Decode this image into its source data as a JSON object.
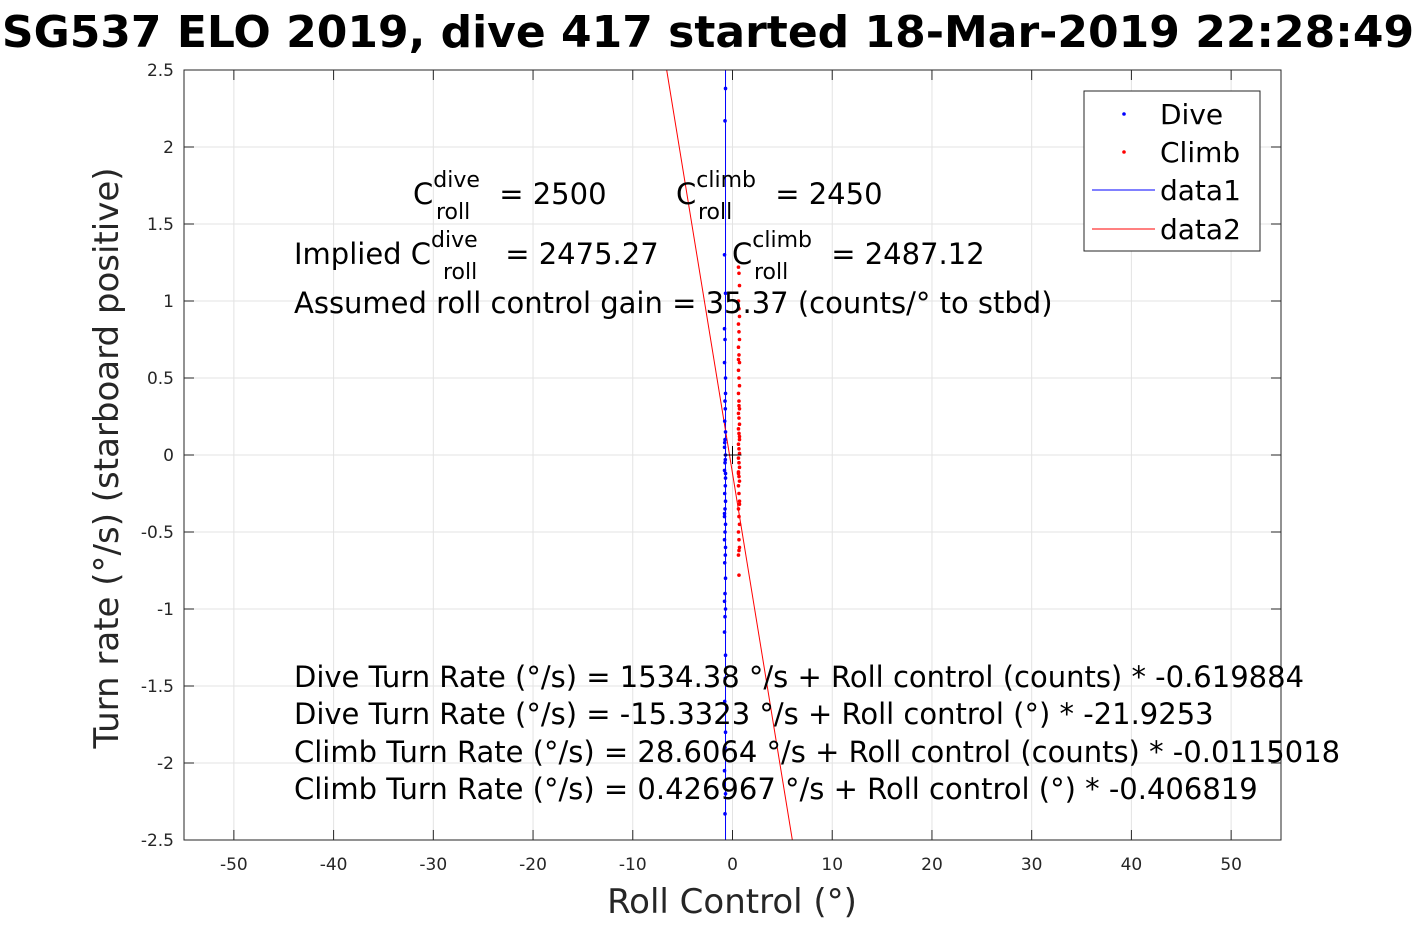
{
  "chart_data": {
    "type": "scatter",
    "title": "SG537 ELO 2019, dive 417 started 18-Mar-2019 22:28:49",
    "xlabel": "Roll Control (°)",
    "ylabel": "Turn rate (°/s) (starboard positive)",
    "xlim": [
      -55,
      55
    ],
    "ylim": [
      -2.5,
      2.5
    ],
    "xticks": [
      -50,
      -40,
      -30,
      -20,
      -10,
      0,
      10,
      20,
      30,
      40,
      50
    ],
    "yticks": [
      -2.5,
      -2,
      -1.5,
      -1,
      -0.5,
      0,
      0.5,
      1,
      1.5,
      2,
      2.5
    ],
    "xtick_labels": [
      "-50",
      "-40",
      "-30",
      "-20",
      "-10",
      "0",
      "10",
      "20",
      "30",
      "40",
      "50"
    ],
    "ytick_labels": [
      "-2.5",
      "-2",
      "-1.5",
      "-1",
      "-0.5",
      "0",
      "0.5",
      "1",
      "1.5",
      "2",
      "2.5"
    ],
    "grid": true,
    "legend_position": "top-right",
    "legend": [
      "Dive",
      "Climb",
      "data1",
      "data2"
    ],
    "colors": {
      "dive": "#0000ff",
      "climb": "#ff0000",
      "marker": "#000000"
    },
    "series": [
      {
        "name": "Dive",
        "kind": "points",
        "x": [
          -0.7,
          -0.75,
          -0.8,
          -0.7,
          -0.75,
          -0.8,
          -0.7,
          -0.72,
          -0.78,
          -0.7,
          -0.75,
          -0.8,
          -0.7,
          -0.75,
          -0.8,
          -0.7,
          -0.72,
          -0.78,
          -0.7,
          -0.75,
          -0.8,
          -0.7,
          -0.75,
          -0.8,
          -0.7,
          -0.72,
          -0.78,
          -0.7,
          -0.75,
          -0.8,
          -0.7,
          -0.75,
          -0.8,
          -0.7,
          -0.72,
          -0.78,
          -0.7,
          -0.75,
          -0.8,
          -0.7,
          -0.75,
          -0.8,
          -0.7,
          -0.72,
          -0.78,
          -0.7,
          -0.75,
          -0.8
        ],
        "y": [
          2.38,
          2.17,
          1.3,
          1.05,
          0.75,
          0.6,
          0.4,
          0.3,
          0.22,
          0.15,
          0.1,
          0.05,
          0.0,
          -0.05,
          -0.1,
          -0.15,
          -0.2,
          -0.25,
          -0.3,
          -0.35,
          -0.4,
          -0.45,
          -0.5,
          -0.55,
          -0.6,
          -0.65,
          -0.7,
          -0.8,
          -0.9,
          -0.95,
          -1.0,
          -1.05,
          -1.15,
          -1.3,
          -1.45,
          -1.6,
          -1.8,
          -1.9,
          -2.05,
          -2.2,
          -2.33,
          0.82,
          0.5,
          -0.03,
          0.08,
          -0.12,
          0.35,
          -0.38
        ]
      },
      {
        "name": "Climb",
        "kind": "points",
        "x": [
          0.6,
          0.65,
          0.7,
          0.6,
          0.65,
          0.7,
          0.6,
          0.65,
          0.7,
          0.6,
          0.65,
          0.7,
          0.6,
          0.65,
          0.7,
          0.6,
          0.65,
          0.7,
          0.6,
          0.65,
          0.7,
          0.6,
          0.65,
          0.7,
          0.6,
          0.65,
          0.7,
          0.6,
          0.65,
          0.7,
          0.6,
          0.65,
          0.7,
          0.6,
          0.65,
          0.7,
          0.6,
          0.65,
          0.7,
          0.6,
          0.65,
          0.7,
          0.6,
          0.65,
          0.7,
          0.6,
          0.65,
          0.7,
          0.6,
          0.65
        ],
        "y": [
          1.22,
          1.18,
          1.1,
          1.0,
          0.95,
          0.9,
          0.85,
          0.8,
          0.75,
          0.7,
          0.65,
          0.6,
          0.55,
          0.5,
          0.45,
          0.4,
          0.35,
          0.3,
          0.27,
          0.24,
          0.2,
          0.17,
          0.14,
          0.1,
          0.07,
          0.04,
          0.01,
          -0.02,
          -0.05,
          -0.08,
          -0.11,
          -0.14,
          -0.17,
          -0.2,
          -0.25,
          -0.3,
          -0.35,
          -0.4,
          -0.45,
          -0.5,
          -0.55,
          -0.6,
          -0.65,
          -0.78,
          0.12,
          -0.12,
          0.32,
          -0.32,
          0.62,
          -0.62
        ]
      },
      {
        "name": "data1",
        "kind": "line",
        "x": [
          -0.7,
          -0.7
        ],
        "y": [
          -2.5,
          2.5
        ]
      },
      {
        "name": "data2",
        "kind": "line",
        "x": [
          -6.6,
          6.0
        ],
        "y": [
          2.5,
          -2.5
        ]
      }
    ],
    "markers": [
      {
        "x": 0,
        "y": 0,
        "symbol": "+"
      }
    ],
    "annotations": {
      "c_dive": {
        "prefix": "",
        "base": "C",
        "sup": "dive",
        "sub": "roll",
        "value": " = 2500"
      },
      "c_climb": {
        "prefix": "",
        "base": "C",
        "sup": "climb",
        "sub": "roll",
        "value": " = 2450"
      },
      "implied_dive": {
        "prefix": "Implied ",
        "base": "C",
        "sup": "dive",
        "sub": "roll",
        "value": " = 2475.27"
      },
      "implied_climb": {
        "prefix": "",
        "base": "C",
        "sup": "climb",
        "sub": "roll",
        "value": " = 2487.12"
      },
      "gain": "Assumed roll control gain = 35.37 (counts/° to stbd)",
      "eq1": "Dive Turn Rate (°/s) = 1534.38 °/s + Roll control (counts) * -0.619884",
      "eq2": "Dive Turn Rate (°/s) = -15.3323 °/s + Roll control (°) * -21.9253",
      "eq3": "Climb Turn Rate (°/s) = 28.6064 °/s + Roll control (counts) * -0.0115018",
      "eq4": "Climb Turn Rate (°/s) = 0.426967 °/s + Roll control (°) * -0.406819"
    }
  }
}
